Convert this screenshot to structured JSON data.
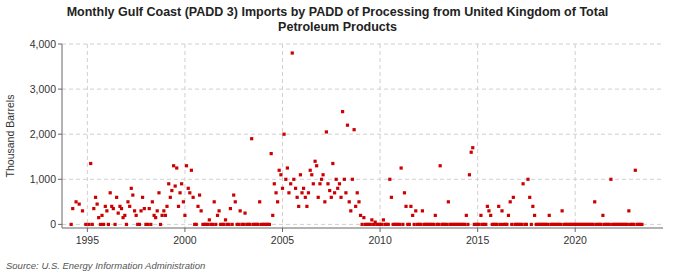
{
  "chart_data": {
    "type": "scatter",
    "title": "Monthly Gulf Coast (PADD 3) Imports by PADD of Processing from United Kingdom of Total\nPetroleum Products",
    "ylabel": "Thousand Barrels",
    "source": "Source: U.S. Energy Information Administration",
    "color": "#cc0000",
    "marker": "square",
    "grid": true,
    "xlim": [
      1993.7,
      2024.5
    ],
    "xticks": [
      1995,
      2000,
      2005,
      2010,
      2015,
      2020
    ],
    "ylim": [
      -80,
      4000
    ],
    "yticks": [
      0,
      {
        "value": 1000,
        "label": "1,000"
      },
      {
        "value": 2000,
        "label": "2,000"
      },
      {
        "value": 3000,
        "label": "3,000"
      },
      {
        "value": 4000,
        "label": "4,000"
      }
    ],
    "x": [
      1994.17,
      1994.25,
      1994.42,
      1994.58,
      1994.75,
      1994.92,
      1995.08,
      1995.17,
      1995.25,
      1995.33,
      1995.42,
      1995.5,
      1995.58,
      1995.67,
      1995.75,
      1995.83,
      1995.92,
      1996.0,
      1996.08,
      1996.17,
      1996.25,
      1996.33,
      1996.42,
      1996.5,
      1996.58,
      1996.67,
      1996.75,
      1996.83,
      1996.92,
      1997.0,
      1997.08,
      1997.17,
      1997.25,
      1997.33,
      1997.42,
      1997.5,
      1997.58,
      1997.67,
      1997.75,
      1997.83,
      1997.92,
      1998.0,
      1998.08,
      1998.17,
      1998.25,
      1998.33,
      1998.42,
      1998.5,
      1998.58,
      1998.67,
      1998.75,
      1998.83,
      1998.92,
      1999.0,
      1999.08,
      1999.17,
      1999.25,
      1999.33,
      1999.42,
      1999.5,
      1999.58,
      1999.67,
      1999.75,
      1999.83,
      1999.92,
      2000.0,
      2000.08,
      2000.17,
      2000.25,
      2000.33,
      2000.42,
      2000.5,
      2000.58,
      2000.67,
      2000.75,
      2000.83,
      2000.92,
      2001.0,
      2001.08,
      2001.17,
      2001.25,
      2001.33,
      2001.42,
      2001.5,
      2001.58,
      2001.67,
      2001.75,
      2001.83,
      2001.92,
      2002.0,
      2002.08,
      2002.17,
      2002.25,
      2002.33,
      2002.42,
      2002.5,
      2002.58,
      2002.67,
      2002.75,
      2002.83,
      2002.92,
      2003.0,
      2003.08,
      2003.17,
      2003.25,
      2003.33,
      2003.42,
      2003.5,
      2003.58,
      2003.67,
      2003.75,
      2003.83,
      2003.92,
      2004.0,
      2004.08,
      2004.17,
      2004.25,
      2004.33,
      2004.42,
      2004.5,
      2004.58,
      2004.67,
      2004.75,
      2004.83,
      2004.92,
      2005.0,
      2005.08,
      2005.17,
      2005.25,
      2005.33,
      2005.42,
      2005.5,
      2005.58,
      2005.67,
      2005.75,
      2005.83,
      2005.92,
      2006.0,
      2006.08,
      2006.17,
      2006.25,
      2006.33,
      2006.42,
      2006.5,
      2006.58,
      2006.67,
      2006.75,
      2006.83,
      2006.92,
      2007.0,
      2007.08,
      2007.17,
      2007.25,
      2007.33,
      2007.42,
      2007.5,
      2007.58,
      2007.67,
      2007.75,
      2007.83,
      2007.92,
      2008.0,
      2008.08,
      2008.17,
      2008.25,
      2008.33,
      2008.42,
      2008.5,
      2008.58,
      2008.67,
      2008.75,
      2008.83,
      2008.92,
      2009.0,
      2009.08,
      2009.17,
      2009.25,
      2009.33,
      2009.42,
      2009.5,
      2009.58,
      2009.67,
      2009.75,
      2009.83,
      2009.92,
      2010.0,
      2010.08,
      2010.17,
      2010.25,
      2010.33,
      2010.42,
      2010.5,
      2010.58,
      2010.67,
      2010.75,
      2010.83,
      2010.92,
      2011.0,
      2011.08,
      2011.17,
      2011.25,
      2011.33,
      2011.42,
      2011.5,
      2011.58,
      2011.67,
      2011.75,
      2011.83,
      2011.92,
      2012.0,
      2012.08,
      2012.17,
      2012.25,
      2012.33,
      2012.42,
      2012.5,
      2012.58,
      2012.67,
      2012.75,
      2012.83,
      2012.92,
      2013.0,
      2013.08,
      2013.17,
      2013.25,
      2013.33,
      2013.42,
      2013.5,
      2013.58,
      2013.67,
      2013.75,
      2013.83,
      2013.92,
      2014.0,
      2014.08,
      2014.17,
      2014.25,
      2014.33,
      2014.42,
      2014.5,
      2014.58,
      2014.67,
      2014.75,
      2014.83,
      2014.92,
      2015.0,
      2015.08,
      2015.17,
      2015.25,
      2015.33,
      2015.42,
      2015.5,
      2015.58,
      2015.67,
      2015.75,
      2015.83,
      2015.92,
      2016.0,
      2016.08,
      2016.17,
      2016.25,
      2016.33,
      2016.42,
      2016.5,
      2016.58,
      2016.67,
      2016.75,
      2016.83,
      2016.92,
      2017.0,
      2017.08,
      2017.17,
      2017.25,
      2017.33,
      2017.42,
      2017.5,
      2017.58,
      2017.67,
      2017.75,
      2017.83,
      2017.92,
      2018.0,
      2018.08,
      2018.17,
      2018.25,
      2018.33,
      2018.42,
      2018.5,
      2018.58,
      2018.67,
      2018.75,
      2018.83,
      2018.92,
      2019.0,
      2019.08,
      2019.17,
      2019.25,
      2019.33,
      2019.42,
      2019.5,
      2019.58,
      2019.67,
      2019.75,
      2019.83,
      2019.92,
      2020.0,
      2020.08,
      2020.17,
      2020.25,
      2020.33,
      2020.42,
      2020.5,
      2020.58,
      2020.67,
      2020.75,
      2020.83,
      2020.92,
      2021.0,
      2021.08,
      2021.17,
      2021.25,
      2021.33,
      2021.42,
      2021.5,
      2021.58,
      2021.67,
      2021.75,
      2021.83,
      2021.92,
      2022.0,
      2022.08,
      2022.17,
      2022.25,
      2022.33,
      2022.42,
      2022.5,
      2022.58,
      2022.67,
      2022.75,
      2022.83,
      2022.92,
      2023.0,
      2023.08,
      2023.17,
      2023.25,
      2023.33,
      2023.42
    ],
    "values": [
      0,
      350,
      500,
      450,
      300,
      0,
      0,
      1350,
      0,
      350,
      600,
      450,
      150,
      0,
      200,
      0,
      400,
      300,
      0,
      700,
      400,
      350,
      0,
      600,
      250,
      400,
      350,
      150,
      200,
      0,
      500,
      400,
      800,
      650,
      300,
      200,
      0,
      0,
      300,
      600,
      350,
      0,
      0,
      350,
      0,
      500,
      200,
      150,
      300,
      700,
      0,
      200,
      300,
      200,
      400,
      900,
      600,
      750,
      1300,
      850,
      1250,
      400,
      700,
      900,
      500,
      200,
      1300,
      800,
      700,
      1200,
      600,
      0,
      0,
      400,
      650,
      300,
      0,
      0,
      0,
      0,
      100,
      0,
      0,
      500,
      0,
      200,
      300,
      0,
      0,
      0,
      100,
      0,
      0,
      350,
      0,
      650,
      500,
      0,
      0,
      300,
      0,
      0,
      250,
      0,
      0,
      0,
      1900,
      0,
      0,
      0,
      0,
      500,
      0,
      0,
      0,
      0,
      0,
      0,
      1570,
      200,
      900,
      700,
      500,
      1200,
      1100,
      800,
      2000,
      1000,
      1250,
      700,
      900,
      3800,
      1000,
      800,
      600,
      400,
      1100,
      700,
      800,
      600,
      400,
      700,
      1200,
      1100,
      900,
      1400,
      1300,
      600,
      900,
      1000,
      1100,
      500,
      2050,
      900,
      750,
      600,
      1350,
      700,
      1000,
      800,
      900,
      600,
      2500,
      1000,
      700,
      2200,
      500,
      300,
      1000,
      2100,
      400,
      700,
      500,
      200,
      0,
      150,
      0,
      0,
      0,
      0,
      100,
      0,
      50,
      0,
      0,
      0,
      0,
      100,
      0,
      0,
      0,
      1000,
      600,
      0,
      0,
      0,
      0,
      0,
      1250,
      0,
      700,
      400,
      0,
      0,
      400,
      200,
      0,
      300,
      0,
      0,
      0,
      300,
      0,
      0,
      0,
      0,
      0,
      0,
      0,
      200,
      0,
      0,
      1300,
      0,
      0,
      0,
      0,
      500,
      0,
      0,
      0,
      0,
      0,
      0,
      0,
      0,
      0,
      0,
      200,
      0,
      1100,
      1600,
      1700,
      0,
      0,
      0,
      0,
      200,
      0,
      0,
      0,
      400,
      300,
      200,
      0,
      0,
      0,
      0,
      400,
      0,
      300,
      0,
      0,
      0,
      200,
      500,
      0,
      600,
      0,
      0,
      0,
      0,
      0,
      900,
      0,
      0,
      1000,
      600,
      0,
      400,
      200,
      0,
      0,
      0,
      0,
      0,
      0,
      0,
      0,
      200,
      0,
      0,
      0,
      0,
      0,
      0,
      0,
      300,
      0,
      0,
      0,
      0,
      0,
      0,
      0,
      0,
      0,
      0,
      0,
      0,
      0,
      0,
      0,
      0,
      0,
      0,
      0,
      500,
      0,
      0,
      0,
      0,
      200,
      0,
      0,
      0,
      0,
      1000,
      0,
      0,
      0,
      0,
      0,
      0,
      0,
      0,
      0,
      0,
      300,
      0,
      0,
      0,
      1200,
      0,
      0,
      0,
      0
    ]
  }
}
